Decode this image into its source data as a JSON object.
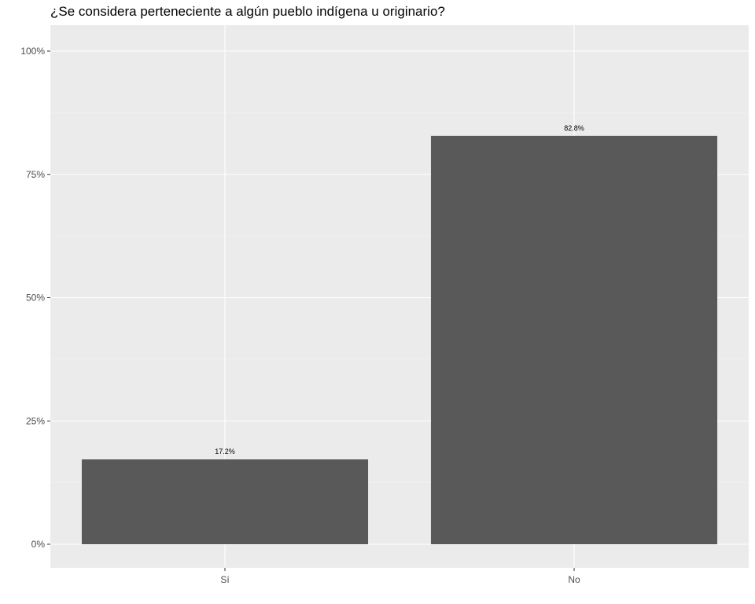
{
  "chart_data": {
    "type": "bar",
    "title": "¿Se considera perteneciente a algún pueblo indígena u originario?",
    "xlabel": "",
    "ylabel": "",
    "categories": [
      "Sí",
      "No"
    ],
    "values": [
      17.2,
      82.8
    ],
    "data_labels": [
      "17.2%",
      "82.8%"
    ],
    "ylim": [
      0,
      100
    ],
    "y_ticks": [
      0,
      25,
      50,
      75,
      100
    ],
    "y_tick_labels": [
      "0%",
      "25%",
      "50%",
      "75%",
      "100%"
    ],
    "grid": true,
    "legend": "none",
    "colors": {
      "bar": "#595959",
      "panel": "#ebebeb",
      "grid_major": "#ffffff",
      "grid_minor": "#f5f5f5",
      "tick_text": "#4d4d4d"
    }
  }
}
